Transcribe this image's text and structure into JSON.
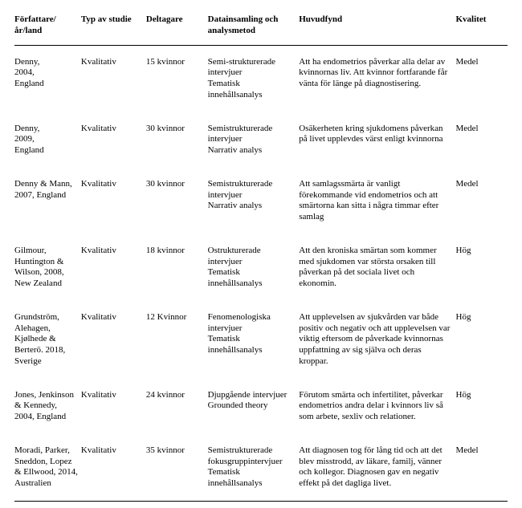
{
  "columns": [
    "Författare/\når/land",
    "Typ av studie",
    "Deltagare",
    "Datainsamling och analysmetod",
    "Huvudfynd",
    "Kvalitet"
  ],
  "rows": [
    {
      "forfattare": "Denny,\n2004,\nEngland",
      "typ": "Kvalitativ",
      "deltagare": "15 kvinnor",
      "metod": "Semi-strukturerade intervjuer\nTematisk innehållsanalys",
      "fynd": "Att ha endometrios påverkar alla delar av kvinnornas liv. Att kvinnor fortfarande får vänta för länge på diagnostisering.",
      "kvalitet": "Medel"
    },
    {
      "forfattare": "Denny,\n2009,\nEngland",
      "typ": "Kvalitativ",
      "deltagare": "30 kvinnor",
      "metod": "Semistrukturerade intervjuer\nNarrativ analys",
      "fynd": "Osäkerheten kring sjukdomens påverkan på livet upplevdes värst enligt kvinnorna",
      "kvalitet": "Medel"
    },
    {
      "forfattare": "Denny & Mann, 2007, England",
      "typ": "Kvalitativ",
      "deltagare": "30 kvinnor",
      "metod": "Semistrukturerade intervjuer\nNarrativ analys",
      "fynd": "Att samlagssmärta är vanligt förekommande vid endometrios och att smärtorna kan sitta i några timmar efter samlag",
      "kvalitet": "Medel"
    },
    {
      "forfattare": "Gilmour, Huntington & Wilson, 2008, New Zealand",
      "typ": "Kvalitativ",
      "deltagare": "18 kvinnor",
      "metod": "Ostrukturerade intervjuer\nTematisk innehållsanalys",
      "fynd": "Att den kroniska smärtan som kommer med sjukdomen var största orsaken till påverkan på det sociala livet och ekonomin.",
      "kvalitet": "Hög"
    },
    {
      "forfattare": "Grundström, Alehagen, Kjølhede & Berterö. 2018, Sverige",
      "typ": "Kvalitativ",
      "deltagare": "12 Kvinnor",
      "metod": "Fenomenologiska intervjuer\nTematisk innehållsanalys",
      "fynd": "Att upplevelsen av sjukvården var både positiv och negativ och att upplevelsen var viktig eftersom de påverkade kvinnornas uppfattning av sig själva och deras kroppar.",
      "kvalitet": "Hög"
    },
    {
      "forfattare": "Jones, Jenkinson & Kennedy, 2004, England",
      "typ": "Kvalitativ",
      "deltagare": "24 kvinnor",
      "metod": "Djupgående intervjuer\nGrounded theory",
      "fynd": "Förutom smärta och infertilitet, påverkar endometrios andra delar i kvinnors liv så som arbete, sexliv och relationer.",
      "kvalitet": "Hög"
    },
    {
      "forfattare": "Moradi, Parker, Sneddon, Lopez & Ellwood, 2014, Australien",
      "typ": "Kvalitativ",
      "deltagare": "35 kvinnor",
      "metod": "Semistrukturerade fokusgruppintervjuer\nTematisk innehållsanalys",
      "fynd": "Att diagnosen tog för lång tid och att det blev misstrodd, av läkare, familj, vänner och kollegor. Diagnosen gav en negativ effekt på det dagliga livet.",
      "kvalitet": "Medel"
    }
  ],
  "colors": {
    "text": "#000000",
    "background": "#ffffff",
    "border": "#000000"
  },
  "typography": {
    "font_family": "Times New Roman",
    "font_size_pt": 9,
    "header_weight": "bold"
  }
}
